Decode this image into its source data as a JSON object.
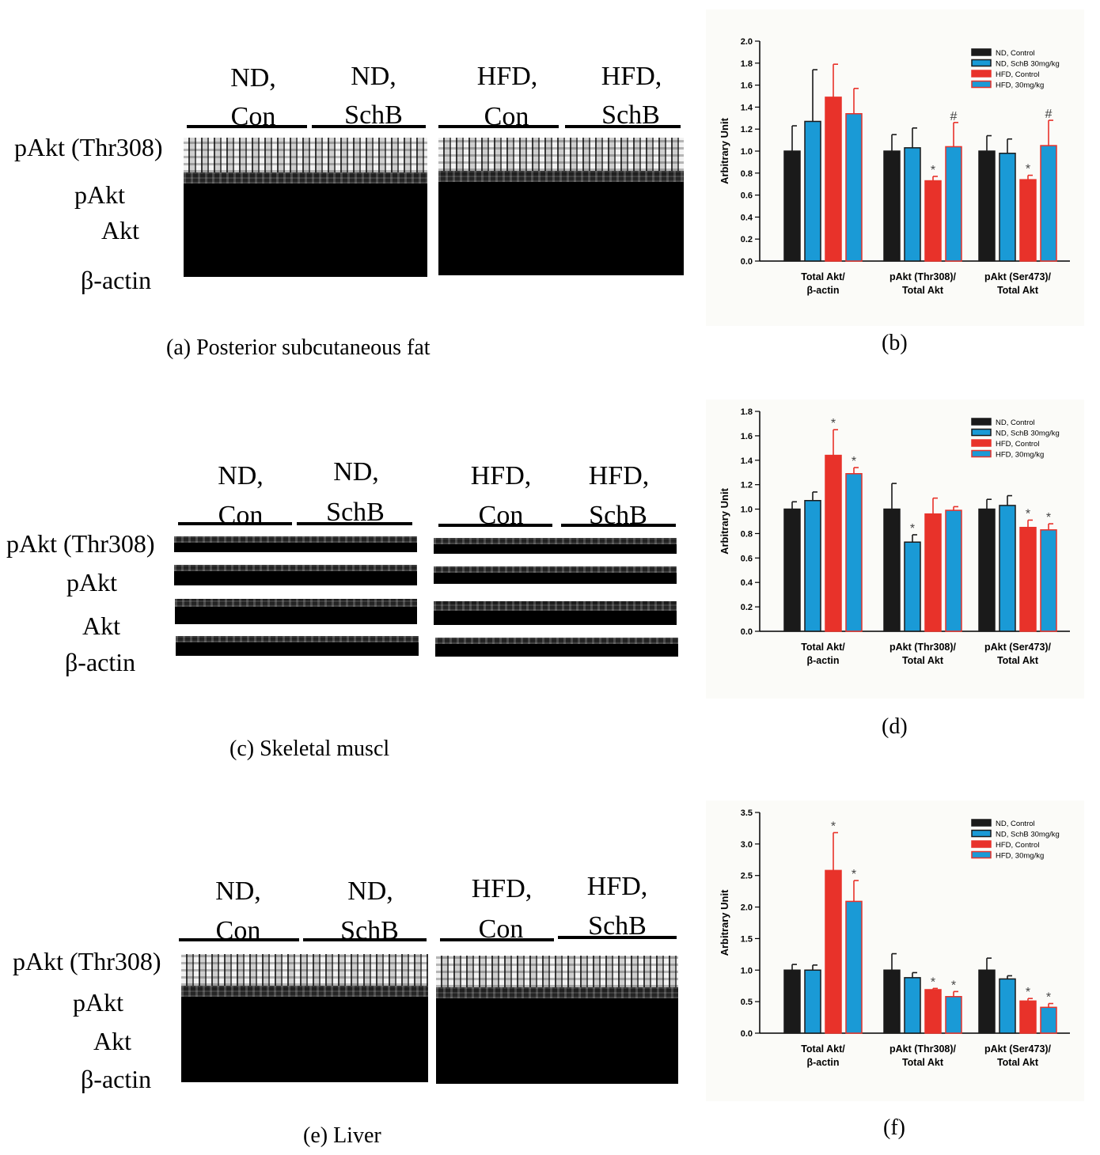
{
  "blot_panels": [
    {
      "caption": "(a)  Posterior subcutaneous fat",
      "groups": [
        {
          "line1": "ND,",
          "line2": "Con"
        },
        {
          "line1": "ND,",
          "line2": "SchB"
        },
        {
          "line1": "HFD,",
          "line2": "Con"
        },
        {
          "line1": "HFD,",
          "line2": "SchB"
        }
      ],
      "rows": [
        "pAkt (Thr308)",
        "pAkt",
        "Akt",
        "β-actin"
      ]
    },
    {
      "caption": "(c)   Skeletal muscl",
      "groups": [
        {
          "line1": "ND,",
          "line2": "Con"
        },
        {
          "line1": "ND,",
          "line2": "SchB"
        },
        {
          "line1": "HFD,",
          "line2": "Con"
        },
        {
          "line1": "HFD,",
          "line2": "SchB"
        }
      ],
      "rows": [
        "pAkt (Thr308)",
        "pAkt",
        "Akt",
        "β-actin"
      ]
    },
    {
      "caption": "(e) Liver",
      "groups": [
        {
          "line1": "ND,",
          "line2": "Con"
        },
        {
          "line1": "ND,",
          "line2": "SchB"
        },
        {
          "line1": "HFD,",
          "line2": "Con"
        },
        {
          "line1": "HFD,",
          "line2": "SchB"
        }
      ],
      "rows": [
        "pAkt (Thr308)",
        "pAkt",
        "Akt",
        "β-actin"
      ]
    }
  ],
  "colors": {
    "nd_control": "#1a1a1a",
    "nd_schb": "#1a9ad6",
    "hfd_control": "#e8322a",
    "hfd_30": "#1a9ad6"
  },
  "chart_data": [
    {
      "type": "bar",
      "caption": "(b)",
      "ylabel": "Arbitrary Unit",
      "ylim": [
        0,
        2.0
      ],
      "yticks": [
        "0.0",
        "0.2",
        "0.4",
        "0.6",
        "0.8",
        "1.0",
        "1.2",
        "1.4",
        "1.6",
        "1.8",
        "2.0"
      ],
      "categories": [
        "Total Akt/\nβ-actin",
        "pAkt (Thr308)/\nTotal Akt",
        "pAkt (Ser473)/\nTotal Akt"
      ],
      "series": [
        {
          "name": "ND, Control",
          "values": [
            1.0,
            1.0,
            1.0
          ],
          "errors": [
            0.23,
            0.15,
            0.14
          ],
          "marks": [
            "",
            "",
            ""
          ]
        },
        {
          "name": "ND, SchB 30mg/kg",
          "values": [
            1.27,
            1.03,
            0.98
          ],
          "errors": [
            0.47,
            0.18,
            0.13
          ],
          "marks": [
            "",
            "",
            ""
          ]
        },
        {
          "name": "HFD, Control",
          "values": [
            1.49,
            0.73,
            0.74
          ],
          "errors": [
            0.3,
            0.04,
            0.04
          ],
          "marks": [
            "",
            "*",
            "*"
          ]
        },
        {
          "name": "HFD, 30mg/kg",
          "values": [
            1.34,
            1.04,
            1.05
          ],
          "errors": [
            0.23,
            0.22,
            0.23
          ],
          "marks": [
            "",
            "#",
            "#"
          ]
        }
      ]
    },
    {
      "type": "bar",
      "caption": "(d)",
      "ylabel": "Arbitrary Unit",
      "ylim": [
        0,
        1.8
      ],
      "yticks": [
        "0.0",
        "0.2",
        "0.4",
        "0.6",
        "0.8",
        "1.0",
        "1.2",
        "1.4",
        "1.6",
        "1.8"
      ],
      "categories": [
        "Total Akt/\nβ-actin",
        "pAkt (Thr308)/\nTotal Akt",
        "pAkt (Ser473)/\nTotal Akt"
      ],
      "series": [
        {
          "name": "ND, Control",
          "values": [
            1.0,
            1.0,
            1.0
          ],
          "errors": [
            0.06,
            0.21,
            0.08
          ],
          "marks": [
            "",
            "",
            ""
          ]
        },
        {
          "name": "ND, SchB 30mg/kg",
          "values": [
            1.07,
            0.73,
            1.03
          ],
          "errors": [
            0.07,
            0.06,
            0.08
          ],
          "marks": [
            "",
            "*",
            ""
          ]
        },
        {
          "name": "HFD, Control",
          "values": [
            1.44,
            0.96,
            0.85
          ],
          "errors": [
            0.21,
            0.13,
            0.06
          ],
          "marks": [
            "*",
            "",
            "*"
          ]
        },
        {
          "name": "HFD, 30mg/kg",
          "values": [
            1.29,
            0.99,
            0.83
          ],
          "errors": [
            0.05,
            0.03,
            0.05
          ],
          "marks": [
            "*",
            "",
            "*"
          ]
        }
      ]
    },
    {
      "type": "bar",
      "caption": "(f)",
      "ylabel": "Arbitrary Unit",
      "ylim": [
        0,
        3.5
      ],
      "yticks": [
        "0.0",
        "0.5",
        "1.0",
        "1.5",
        "2.0",
        "2.5",
        "3.0",
        "3.5"
      ],
      "categories": [
        "Total Akt/\nβ-actin",
        "pAkt (Thr308)/\nTotal Akt",
        "pAkt (Ser473)/\nTotal Akt"
      ],
      "series": [
        {
          "name": "ND, Control",
          "values": [
            1.0,
            1.0,
            1.0
          ],
          "errors": [
            0.09,
            0.26,
            0.19
          ],
          "marks": [
            "",
            "",
            ""
          ]
        },
        {
          "name": "ND, SchB 30mg/kg",
          "values": [
            1.0,
            0.88,
            0.86
          ],
          "errors": [
            0.08,
            0.08,
            0.05
          ],
          "marks": [
            "",
            "",
            ""
          ]
        },
        {
          "name": "HFD, Control",
          "values": [
            2.58,
            0.69,
            0.51
          ],
          "errors": [
            0.6,
            0.02,
            0.04
          ],
          "marks": [
            "*",
            "*",
            "*"
          ]
        },
        {
          "name": "HFD, 30mg/kg",
          "values": [
            2.09,
            0.58,
            0.41
          ],
          "errors": [
            0.33,
            0.08,
            0.06
          ],
          "marks": [
            "*",
            "*",
            "*"
          ]
        }
      ]
    }
  ]
}
